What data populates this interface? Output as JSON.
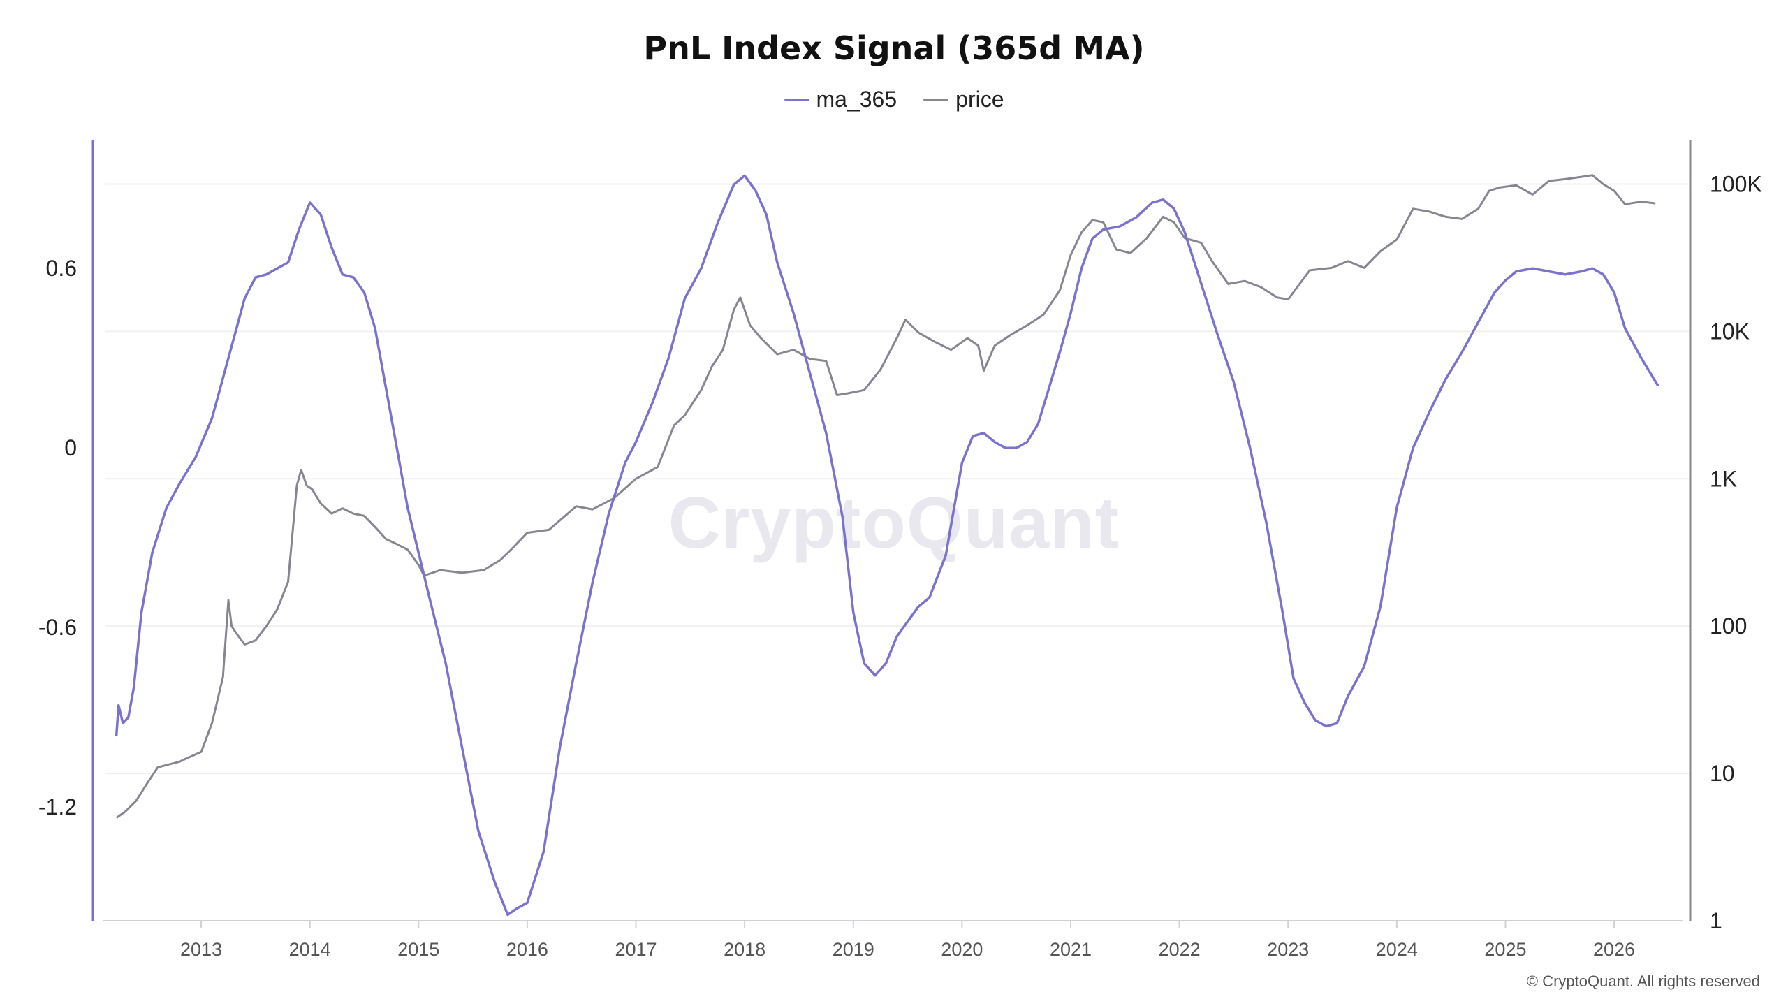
{
  "page": {
    "copyright": "© CryptoQuant. All rights reserved",
    "watermark": "CryptoQuant"
  },
  "colors": {
    "ma": "#7b72cf",
    "price": "#868690",
    "grid": "#f0f0f3",
    "axis": "#d0d0d6"
  },
  "chart_data": {
    "type": "line",
    "title": "PnL Index Signal (365d MA)",
    "legend_position": "top-center",
    "grid": true,
    "x_ticks": [
      "2013",
      "2014",
      "2015",
      "2016",
      "2017",
      "2018",
      "2019",
      "2020",
      "2021",
      "2022",
      "2023",
      "2024",
      "2025",
      "2026"
    ],
    "y_left": {
      "ticks": [
        "0.6",
        "0",
        "-0.6",
        "-1.2"
      ],
      "tick_values": [
        0.6,
        0,
        -0.6,
        -1.2
      ],
      "range": [
        -1.58,
        1.03
      ]
    },
    "y_right": {
      "scale": "log",
      "ticks": [
        "100K",
        "10K",
        "1K",
        "100",
        "10",
        "1"
      ],
      "tick_values": [
        100000,
        10000,
        1000,
        100,
        10,
        1
      ],
      "range": [
        1,
        200000
      ]
    },
    "x_range": [
      2012.1,
      2026.7
    ],
    "series": [
      {
        "name": "ma_365",
        "axis": "left",
        "x": [
          2012.22,
          2012.24,
          2012.28,
          2012.33,
          2012.38,
          2012.45,
          2012.55,
          2012.68,
          2012.8,
          2012.95,
          2013.1,
          2013.25,
          2013.4,
          2013.5,
          2013.6,
          2013.7,
          2013.8,
          2013.9,
          2014.0,
          2014.1,
          2014.2,
          2014.3,
          2014.4,
          2014.5,
          2014.6,
          2014.7,
          2014.8,
          2014.9,
          2015.0,
          2015.1,
          2015.25,
          2015.4,
          2015.55,
          2015.7,
          2015.82,
          2015.9,
          2016.0,
          2016.15,
          2016.3,
          2016.45,
          2016.6,
          2016.75,
          2016.9,
          2017.0,
          2017.15,
          2017.3,
          2017.45,
          2017.6,
          2017.75,
          2017.9,
          2018.0,
          2018.1,
          2018.2,
          2018.3,
          2018.45,
          2018.6,
          2018.75,
          2018.9,
          2019.0,
          2019.1,
          2019.2,
          2019.3,
          2019.4,
          2019.5,
          2019.6,
          2019.7,
          2019.85,
          2020.0,
          2020.1,
          2020.2,
          2020.3,
          2020.4,
          2020.5,
          2020.6,
          2020.7,
          2020.8,
          2020.9,
          2021.0,
          2021.1,
          2021.2,
          2021.3,
          2021.45,
          2021.6,
          2021.75,
          2021.85,
          2021.95,
          2022.05,
          2022.2,
          2022.35,
          2022.5,
          2022.65,
          2022.8,
          2022.95,
          2023.05,
          2023.15,
          2023.25,
          2023.35,
          2023.45,
          2023.55,
          2023.7,
          2023.85,
          2024.0,
          2024.15,
          2024.3,
          2024.45,
          2024.6,
          2024.75,
          2024.9,
          2025.0,
          2025.1,
          2025.25,
          2025.4,
          2025.55,
          2025.7,
          2025.8,
          2025.9,
          2026.0,
          2026.1,
          2026.25,
          2026.4
        ],
        "y": [
          -0.96,
          -0.86,
          -0.92,
          -0.9,
          -0.8,
          -0.55,
          -0.35,
          -0.2,
          -0.12,
          -0.03,
          0.1,
          0.3,
          0.5,
          0.57,
          0.58,
          0.6,
          0.62,
          0.73,
          0.82,
          0.78,
          0.67,
          0.58,
          0.57,
          0.52,
          0.4,
          0.2,
          0.0,
          -0.2,
          -0.35,
          -0.5,
          -0.72,
          -1.0,
          -1.28,
          -1.45,
          -1.56,
          -1.54,
          -1.52,
          -1.35,
          -1.0,
          -0.72,
          -0.45,
          -0.22,
          -0.05,
          0.02,
          0.15,
          0.3,
          0.5,
          0.6,
          0.75,
          0.88,
          0.91,
          0.86,
          0.78,
          0.62,
          0.45,
          0.25,
          0.05,
          -0.23,
          -0.55,
          -0.72,
          -0.76,
          -0.72,
          -0.63,
          -0.58,
          -0.53,
          -0.5,
          -0.36,
          -0.05,
          0.04,
          0.05,
          0.02,
          0.0,
          0.0,
          0.02,
          0.08,
          0.2,
          0.32,
          0.45,
          0.6,
          0.7,
          0.73,
          0.74,
          0.77,
          0.82,
          0.83,
          0.8,
          0.72,
          0.55,
          0.38,
          0.22,
          0.0,
          -0.25,
          -0.55,
          -0.77,
          -0.85,
          -0.91,
          -0.93,
          -0.92,
          -0.83,
          -0.73,
          -0.53,
          -0.2,
          0.0,
          0.12,
          0.23,
          0.32,
          0.42,
          0.52,
          0.56,
          0.59,
          0.6,
          0.59,
          0.58,
          0.59,
          0.6,
          0.58,
          0.52,
          0.4,
          0.3,
          0.21
        ]
      },
      {
        "name": "price",
        "axis": "right",
        "x": [
          2012.22,
          2012.3,
          2012.4,
          2012.5,
          2012.6,
          2012.7,
          2012.8,
          2012.9,
          2013.0,
          2013.1,
          2013.2,
          2013.25,
          2013.28,
          2013.32,
          2013.4,
          2013.5,
          2013.6,
          2013.7,
          2013.8,
          2013.88,
          2013.92,
          2013.97,
          2014.02,
          2014.1,
          2014.2,
          2014.3,
          2014.4,
          2014.5,
          2014.6,
          2014.7,
          2014.8,
          2014.9,
          2015.0,
          2015.05,
          2015.2,
          2015.4,
          2015.6,
          2015.75,
          2015.85,
          2016.0,
          2016.2,
          2016.45,
          2016.6,
          2016.8,
          2017.0,
          2017.2,
          2017.35,
          2017.45,
          2017.6,
          2017.7,
          2017.8,
          2017.9,
          2017.96,
          2018.05,
          2018.15,
          2018.3,
          2018.45,
          2018.6,
          2018.75,
          2018.85,
          2018.95,
          2019.1,
          2019.25,
          2019.4,
          2019.48,
          2019.6,
          2019.75,
          2019.9,
          2020.05,
          2020.15,
          2020.2,
          2020.3,
          2020.45,
          2020.6,
          2020.75,
          2020.9,
          2021.0,
          2021.1,
          2021.2,
          2021.3,
          2021.42,
          2021.55,
          2021.7,
          2021.85,
          2021.95,
          2022.05,
          2022.2,
          2022.3,
          2022.45,
          2022.6,
          2022.75,
          2022.9,
          2023.0,
          2023.2,
          2023.4,
          2023.55,
          2023.7,
          2023.85,
          2024.0,
          2024.15,
          2024.3,
          2024.45,
          2024.6,
          2024.75,
          2024.85,
          2024.95,
          2025.1,
          2025.25,
          2025.4,
          2025.55,
          2025.7,
          2025.8,
          2025.9,
          2026.0,
          2026.1,
          2026.25,
          2026.38
        ],
        "y": [
          5,
          5.5,
          6.5,
          8.5,
          11,
          11.5,
          12,
          13,
          14,
          22,
          45,
          150,
          100,
          90,
          75,
          80,
          100,
          130,
          200,
          900,
          1150,
          900,
          850,
          680,
          580,
          630,
          580,
          560,
          470,
          390,
          360,
          330,
          260,
          220,
          240,
          230,
          240,
          280,
          330,
          430,
          450,
          650,
          620,
          740,
          1000,
          1200,
          2300,
          2700,
          4000,
          5800,
          7500,
          14000,
          17000,
          11000,
          9000,
          7000,
          7500,
          6500,
          6300,
          3700,
          3800,
          4000,
          5500,
          9000,
          12000,
          9800,
          8500,
          7500,
          9000,
          8000,
          5400,
          8000,
          9500,
          11000,
          13000,
          19000,
          33000,
          47000,
          57000,
          55000,
          36000,
          34000,
          43000,
          60000,
          55000,
          43000,
          40000,
          30000,
          21000,
          22000,
          20000,
          17000,
          16500,
          26000,
          27000,
          30000,
          27000,
          35000,
          42000,
          68000,
          65000,
          60000,
          58000,
          68000,
          90000,
          95000,
          98000,
          85000,
          105000,
          108000,
          112000,
          115000,
          100000,
          90000,
          73000,
          76000,
          74000
        ]
      }
    ]
  }
}
